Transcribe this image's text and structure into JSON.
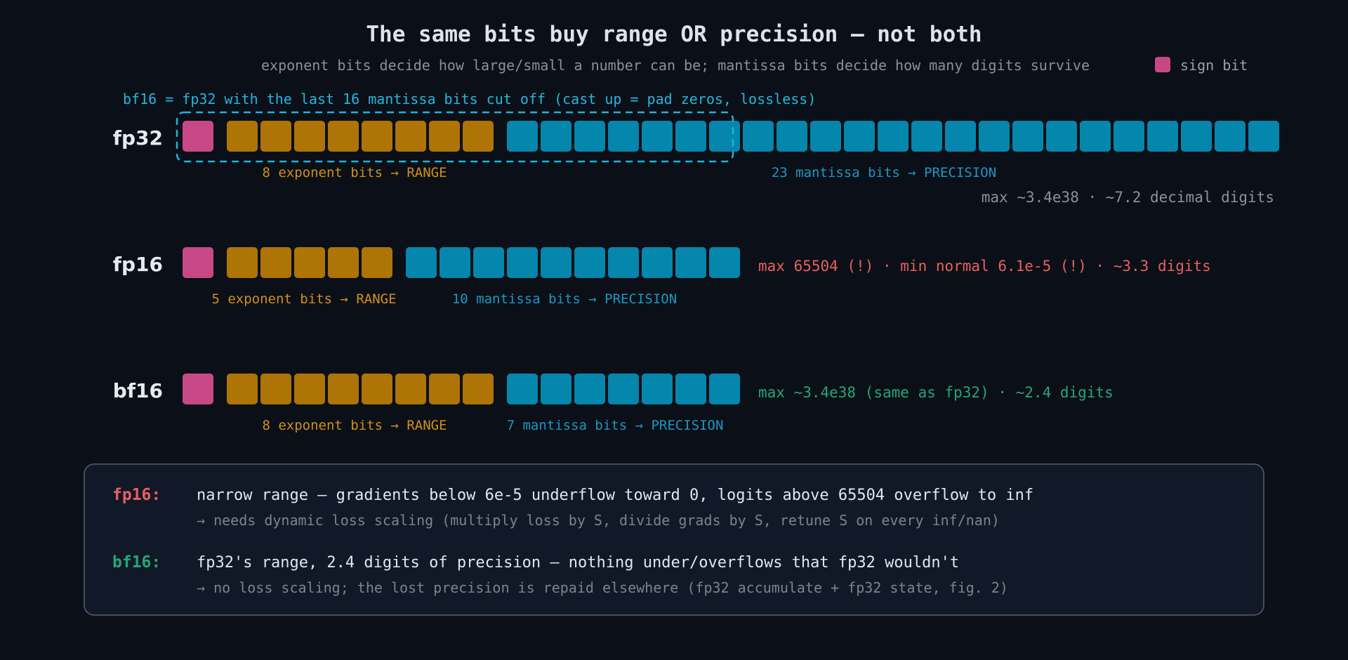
{
  "title": "The same bits buy range OR precision — not both",
  "subtitle": "exponent bits decide how large/small a number can be; mantissa bits decide how many digits survive",
  "legend": {
    "label": "sign bit"
  },
  "colors": {
    "sign": "#c74887",
    "exponent": "#ae7406",
    "mantissa": "#0586ac",
    "highlight": "#1bb5dc",
    "red": "#e8605f",
    "green": "#21a877"
  },
  "bf16_note": "bf16 = fp32 with the last 16 mantissa bits cut off (cast up = pad zeros, lossless)",
  "formats": [
    {
      "name": "fp32",
      "sign_bits": 1,
      "exponent_bits": 8,
      "mantissa_bits": 23,
      "exponent_label": "8 exponent bits → RANGE",
      "mantissa_label": "23 mantissa bits → PRECISION",
      "info": "max ~3.4e38 · ~7.2 decimal digits"
    },
    {
      "name": "fp16",
      "sign_bits": 1,
      "exponent_bits": 5,
      "mantissa_bits": 10,
      "exponent_label": "5 exponent bits → RANGE",
      "mantissa_label": "10 mantissa bits → PRECISION",
      "info": "max 65504 (!) · min normal 6.1e-5 (!) · ~3.3 digits"
    },
    {
      "name": "bf16",
      "sign_bits": 1,
      "exponent_bits": 8,
      "mantissa_bits": 7,
      "exponent_label": "8 exponent bits → RANGE",
      "mantissa_label": "7 mantissa bits → PRECISION",
      "info": "max ~3.4e38 (same as fp32) · ~2.4 digits"
    }
  ],
  "summary": [
    {
      "key": "fp16:",
      "main": "narrow range — gradients below 6e-5 underflow toward 0, logits above 65504 overflow to inf",
      "sub": "→ needs dynamic loss scaling (multiply loss by S, divide grads by S, retune S on every inf/nan)"
    },
    {
      "key": "bf16:",
      "main": "fp32's range, 2.4 digits of precision — nothing under/overflows that fp32 wouldn't",
      "sub": "→ no loss scaling; the lost precision is repaid elsewhere (fp32 accumulate + fp32 state, fig. 2)"
    }
  ]
}
